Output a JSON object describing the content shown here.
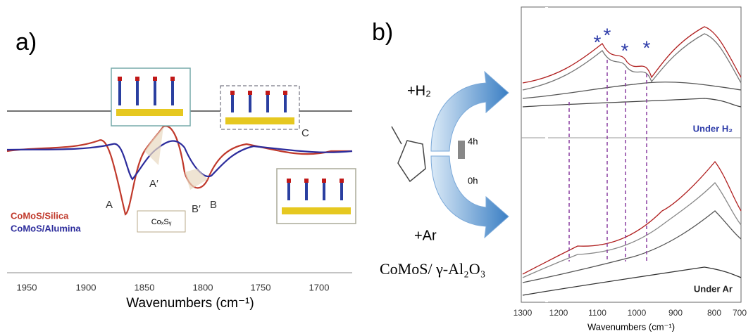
{
  "panel_a": {
    "label": "a)",
    "xlabel": "Wavenumbers (cm⁻¹)",
    "xticks": [
      "1950",
      "1900",
      "1850",
      "1800",
      "1750",
      "1700"
    ],
    "peaks": [
      "A",
      "A′",
      "B′",
      "B",
      "C"
    ],
    "legend": [
      "CoMoS/Silica",
      "CoMoS/Alumina"
    ],
    "box": "CoₓSᵧ"
  },
  "panel_b": {
    "label": "b)",
    "arrows": [
      "+H₂",
      "+Ar"
    ],
    "time": [
      "4h",
      "0h"
    ],
    "catalyst": "CoMoS/ γ-Al₂O₃",
    "stars": [
      "*",
      "*",
      "*",
      "*",
      "*"
    ],
    "top": "Under H₂",
    "bottom": "Under Ar",
    "xlabel": "Wavenumbers (cm⁻¹)",
    "xticks": [
      "1300",
      "1200",
      "1100",
      "1000",
      "900",
      "800",
      "700"
    ]
  }
}
